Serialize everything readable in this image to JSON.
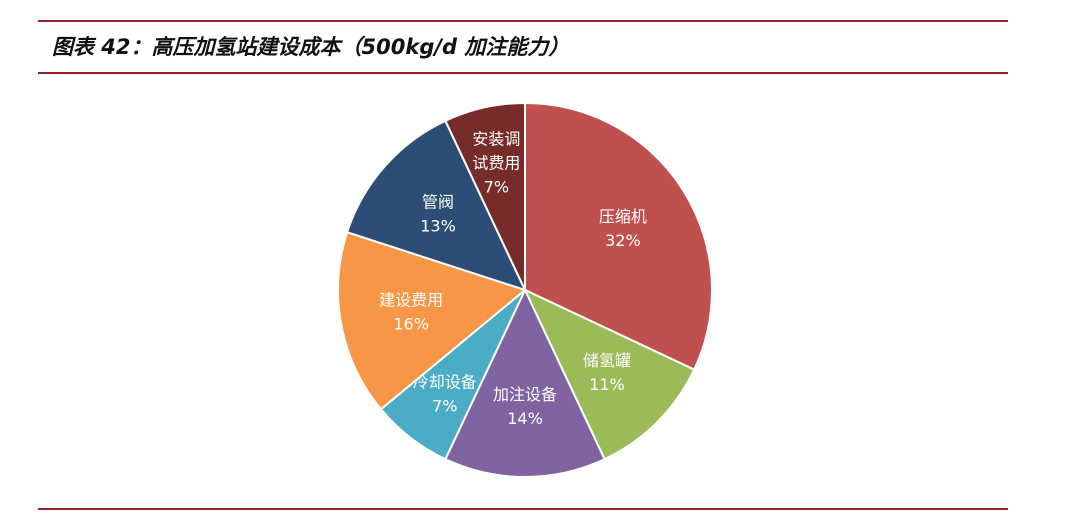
{
  "title": "图表 42：高压加氢站建设成本（500kg/d 加注能力）",
  "chart_data": {
    "type": "pie",
    "title": "",
    "slices": [
      {
        "label": "压缩机",
        "value": 32,
        "display": "32%",
        "color": "#c0504d"
      },
      {
        "label": "储氢罐",
        "value": 11,
        "display": "11%",
        "color": "#9bbb59"
      },
      {
        "label": "加注设备",
        "value": 14,
        "display": "14%",
        "color": "#8064a2"
      },
      {
        "label": "冷却设备",
        "value": 7,
        "display": "7%",
        "color": "#4bacc6"
      },
      {
        "label": "建设费用",
        "value": 16,
        "display": "16%",
        "color": "#f79646"
      },
      {
        "label": "管阀",
        "value": 13,
        "display": "13%",
        "color": "#2c4d75"
      },
      {
        "label": "安装调试费用",
        "value": 7,
        "display": "7%",
        "color": "#772c2a"
      }
    ]
  }
}
